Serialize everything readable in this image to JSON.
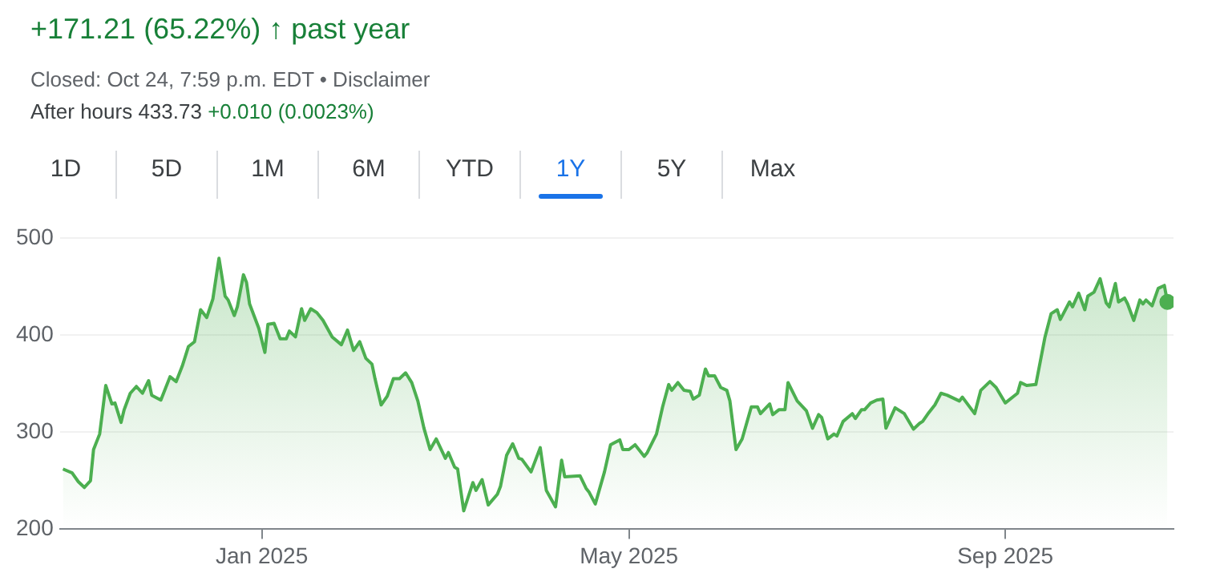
{
  "chart_data": {
    "type": "area",
    "title": "+171.21 (65.22%) ↑ past year",
    "subtitle": "Closed: Oct 24, 7:59 p.m. EDT • Disclaimer",
    "annotations": [
      "After hours 433.73",
      "+0.010 (0.0023%)",
      "1D",
      "5D",
      "1M",
      "6M",
      "YTD",
      "1Y",
      "5Y",
      "Max"
    ],
    "x": [
      "2024-10-28",
      "2024-10-31",
      "2024-11-02",
      "2024-11-04",
      "2024-11-06",
      "2024-11-07",
      "2024-11-09",
      "2024-11-11",
      "2024-11-13",
      "2024-11-14",
      "2024-11-16",
      "2024-11-17",
      "2024-11-19",
      "2024-11-21",
      "2024-11-23",
      "2024-11-25",
      "2024-11-26",
      "2024-11-29",
      "2024-12-02",
      "2024-12-04",
      "2024-12-06",
      "2024-12-08",
      "2024-12-10",
      "2024-12-12",
      "2024-12-14",
      "2024-12-16",
      "2024-12-18",
      "2024-12-20",
      "2024-12-21",
      "2024-12-23",
      "2024-12-24",
      "2024-12-26",
      "2024-12-27",
      "2024-12-28",
      "2024-12-31",
      "2025-01-02",
      "2025-01-03",
      "2025-01-05",
      "2025-01-07",
      "2025-01-09",
      "2025-01-10",
      "2025-01-12",
      "2025-01-14",
      "2025-01-15",
      "2025-01-17",
      "2025-01-19",
      "2025-01-21",
      "2025-01-24",
      "2025-01-27",
      "2025-01-29",
      "2025-01-31",
      "2025-02-02",
      "2025-02-04",
      "2025-02-06",
      "2025-02-07",
      "2025-02-09",
      "2025-02-11",
      "2025-02-13",
      "2025-02-15",
      "2025-02-17",
      "2025-02-19",
      "2025-02-21",
      "2025-02-23",
      "2025-02-25",
      "2025-02-27",
      "2025-03-02",
      "2025-03-03",
      "2025-03-05",
      "2025-03-06",
      "2025-03-08",
      "2025-03-11",
      "2025-03-12",
      "2025-03-14",
      "2025-03-16",
      "2025-03-19",
      "2025-03-20",
      "2025-03-22",
      "2025-03-24",
      "2025-03-26",
      "2025-03-27",
      "2025-03-30",
      "2025-04-02",
      "2025-04-04",
      "2025-04-07",
      "2025-04-09",
      "2025-04-10",
      "2025-04-15",
      "2025-04-17",
      "2025-04-18",
      "2025-04-20",
      "2025-04-23",
      "2025-04-25",
      "2025-04-28",
      "2025-04-29",
      "2025-05-01",
      "2025-05-03",
      "2025-05-06",
      "2025-05-07",
      "2025-05-10",
      "2025-05-12",
      "2025-05-14",
      "2025-05-15",
      "2025-05-17",
      "2025-05-19",
      "2025-05-21",
      "2025-05-22",
      "2025-05-24",
      "2025-05-26",
      "2025-05-27",
      "2025-05-29",
      "2025-05-31",
      "2025-06-02",
      "2025-06-03",
      "2025-06-05",
      "2025-06-07",
      "2025-06-10",
      "2025-06-12",
      "2025-06-13",
      "2025-06-16",
      "2025-06-17",
      "2025-06-19",
      "2025-06-21",
      "2025-06-22",
      "2025-06-25",
      "2025-06-28",
      "2025-06-30",
      "2025-07-02",
      "2025-07-03",
      "2025-07-05",
      "2025-07-07",
      "2025-07-08",
      "2025-07-10",
      "2025-07-13",
      "2025-07-14",
      "2025-07-16",
      "2025-07-17",
      "2025-07-19",
      "2025-07-21",
      "2025-07-23",
      "2025-07-24",
      "2025-07-27",
      "2025-07-30",
      "2025-08-02",
      "2025-08-04",
      "2025-08-05",
      "2025-08-07",
      "2025-08-09",
      "2025-08-11",
      "2025-08-13",
      "2025-08-17",
      "2025-08-18",
      "2025-08-22",
      "2025-08-24",
      "2025-08-27",
      "2025-08-29",
      "2025-09-01",
      "2025-09-05",
      "2025-09-06",
      "2025-09-08",
      "2025-09-11",
      "2025-09-14",
      "2025-09-16",
      "2025-09-18",
      "2025-09-19",
      "2025-09-22",
      "2025-09-23",
      "2025-09-25",
      "2025-09-27",
      "2025-09-28",
      "2025-09-30",
      "2025-10-02",
      "2025-10-04",
      "2025-10-05",
      "2025-10-07",
      "2025-10-08",
      "2025-10-10",
      "2025-10-11",
      "2025-10-13",
      "2025-10-15",
      "2025-10-16",
      "2025-10-17",
      "2025-10-19",
      "2025-10-21",
      "2025-10-23",
      "2025-10-24"
    ],
    "series": [
      {
        "color": "#4caf50",
        "values": [
          262,
          258,
          249,
          243,
          250,
          282,
          298,
          348,
          329,
          330,
          310,
          323,
          340,
          347,
          340,
          353,
          338,
          333,
          357,
          352,
          368,
          388,
          393,
          426,
          418,
          437,
          479,
          440,
          436,
          420,
          429,
          462,
          454,
          432,
          407,
          382,
          411,
          412,
          396,
          396,
          404,
          398,
          427,
          415,
          427,
          423,
          415,
          398,
          390,
          405,
          384,
          393,
          376,
          370,
          355,
          328,
          337,
          355,
          355,
          361,
          351,
          332,
          304,
          282,
          293,
          273,
          279,
          264,
          262,
          219,
          248,
          240,
          251,
          225,
          236,
          244,
          276,
          288,
          273,
          272,
          259,
          284,
          240,
          223,
          271,
          254,
          255,
          242,
          238,
          226,
          259,
          287,
          292,
          282,
          282,
          287,
          275,
          279,
          298,
          326,
          349,
          343,
          351,
          343,
          342,
          334,
          338,
          365,
          358,
          358,
          346,
          343,
          332,
          282,
          293,
          326,
          326,
          319,
          329,
          318,
          323,
          323,
          351,
          332,
          322,
          304,
          318,
          315,
          293,
          298,
          296,
          311,
          319,
          314,
          323,
          323,
          330,
          333,
          334,
          304,
          325,
          319,
          303,
          309,
          311,
          320,
          328,
          340,
          338,
          332,
          336,
          319,
          343,
          352,
          346,
          330,
          340,
          351,
          348,
          349,
          398,
          422,
          426,
          416,
          434,
          429,
          443,
          426,
          440,
          444,
          458,
          433,
          429,
          453,
          434,
          438,
          432,
          415,
          436,
          432,
          436,
          430,
          448,
          451,
          434
        ]
      }
    ],
    "xlim": [
      "2024-10-27",
      "2025-10-26"
    ],
    "xticks": [
      {
        "value": "2025-01-01",
        "label": "Jan 2025"
      },
      {
        "value": "2025-05-01",
        "label": "May 2025"
      },
      {
        "value": "2025-09-01",
        "label": "Sep 2025"
      }
    ],
    "ylim": [
      200,
      500
    ],
    "yticks": [
      200,
      300,
      400,
      500
    ],
    "grid": "y",
    "legend": false,
    "marker": "none",
    "line_style": "solid"
  }
}
